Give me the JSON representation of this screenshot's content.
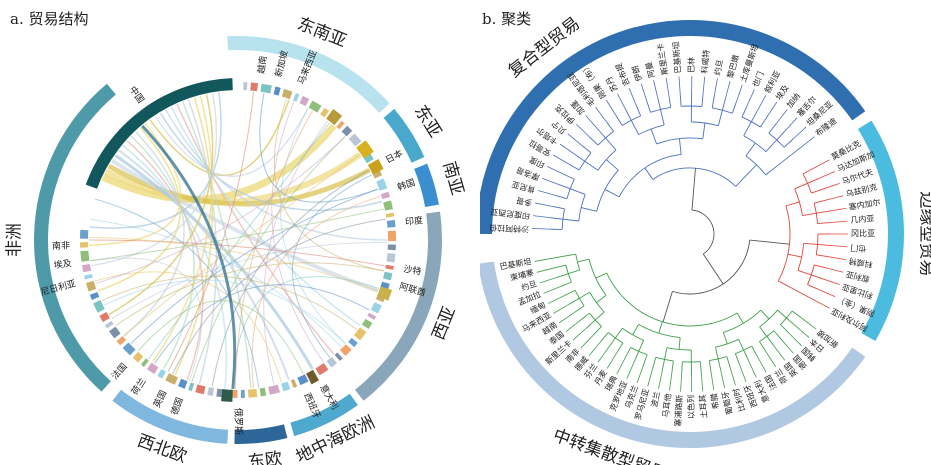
{
  "panel_a": {
    "title": "a. 贸易结构",
    "regions": [
      {
        "label": "东南亚",
        "color": "#b7e2ee"
      },
      {
        "label": "东亚",
        "color": "#4aa8cc"
      },
      {
        "label": "南亚",
        "color": "#3a8fd0"
      },
      {
        "label": "西亚",
        "color": "#8aa6ba"
      },
      {
        "label": "地中海欧洲",
        "color": "#4fa9cf"
      },
      {
        "label": "东欧",
        "color": "#2d6799"
      },
      {
        "label": "西北欧",
        "color": "#7fb7de"
      },
      {
        "label": "非洲",
        "color": "#4f9aa8"
      }
    ],
    "countries": [
      "中国",
      "越南",
      "新加坡",
      "马来西亚",
      "日本",
      "韩国",
      "印度",
      "沙特",
      "阿联酋",
      "意大利",
      "西班牙",
      "俄罗斯",
      "德国",
      "英国",
      "荷兰",
      "法国",
      "尼日利亚",
      "埃及",
      "南非"
    ]
  },
  "panel_b": {
    "title": "b. 聚类",
    "clusters": [
      {
        "label": "复合型贸易",
        "color": "#2f6fb0",
        "line_color": "#4a6fc2"
      },
      {
        "label": "边缘型贸易",
        "color": "#4bbbe0",
        "line_color": "#e0453a"
      },
      {
        "label": "中转集散型贸易",
        "color": "#b0c8e2",
        "line_color": "#3ea04a"
      }
    ],
    "leaves_composite": [
      "沙特阿拉伯",
      "印度尼西亚",
      "多哥",
      "肯尼亚",
      "摩洛哥",
      "印度",
      "安哥拉",
      "卡塔尔",
      "贝宁",
      "伊拉克",
      "加蓬",
      "毛利塔尼亚",
      "刚果（布）",
      "苏丹",
      "吉布提",
      "伊朗",
      "阿曼",
      "斯里兰卡",
      "巴基斯坦",
      "巴林",
      "科威特",
      "约旦",
      "黎巴嫩",
      "土库曼斯坦",
      "也门",
      "叙利亚",
      "埃及",
      "加纳",
      "塞舌尔",
      "坦桑尼亚",
      "布隆迪"
    ],
    "leaves_edge": [
      "莫桑比克",
      "马达加斯加",
      "马尔代夫",
      "乌兹别克",
      "塞内加尔",
      "几内亚",
      "冈比亚",
      "也门",
      "科威特",
      "叙利亚",
      "利比里亚",
      "刚果（金）",
      "阿尔及利亚"
    ],
    "leaves_hub": [
      "新加坡",
      "日本",
      "韩国",
      "德国",
      "英国",
      "荷兰",
      "法国",
      "意大利",
      "西班牙",
      "比利时",
      "葡萄牙",
      "希腊",
      "土耳其",
      "以色列",
      "塞浦路斯",
      "马耳他",
      "波兰",
      "罗马尼亚",
      "乌克兰",
      "克罗地亚",
      "瑞典",
      "丹麦",
      "芬兰",
      "挪威",
      "南非",
      "斯里兰卡",
      "泰国",
      "越南",
      "马来西亚",
      "缅甸",
      "孟加拉",
      "约旦",
      "柬埔寨",
      "巴基斯坦"
    ]
  }
}
